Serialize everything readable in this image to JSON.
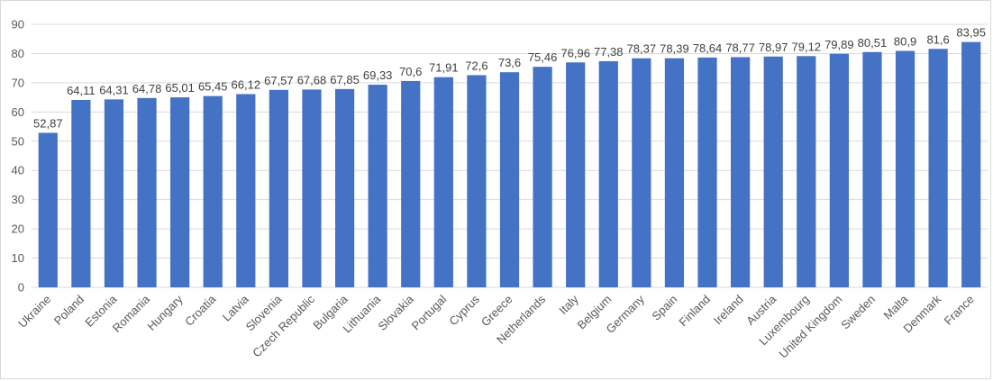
{
  "chart_data": {
    "type": "bar",
    "title": "",
    "xlabel": "",
    "ylabel": "",
    "ylim": [
      0,
      90
    ],
    "yticks": [
      0,
      10,
      20,
      30,
      40,
      50,
      60,
      70,
      80,
      90
    ],
    "grid": true,
    "bar_color": "#4472C4",
    "categories": [
      "Ukraine",
      "Poland",
      "Estonia",
      "Romania",
      "Hungary",
      "Croatia",
      "Latvia",
      "Slovenia",
      "Czech Republic",
      "Bulgaria",
      "Lithuania",
      "Slovakia",
      "Portugal",
      "Cyprus",
      "Greece",
      "Netherlands",
      "Italy",
      "Belgium",
      "Germany",
      "Spain",
      "Finland",
      "Ireland",
      "Austria",
      "Luxembourg",
      "United Kingdom",
      "Sweden",
      "Malta",
      "Denmark",
      "France"
    ],
    "values": [
      52.87,
      64.11,
      64.31,
      64.78,
      65.01,
      65.45,
      66.12,
      67.57,
      67.68,
      67.85,
      69.33,
      70.6,
      71.91,
      72.6,
      73.6,
      75.46,
      76.96,
      77.38,
      78.37,
      78.39,
      78.64,
      78.77,
      78.97,
      79.12,
      79.89,
      80.51,
      80.9,
      81.6,
      83.95
    ],
    "value_labels": [
      "52,87",
      "64,11",
      "64,31",
      "64,78",
      "65,01",
      "65,45",
      "66,12",
      "67,57",
      "67,68",
      "67,85",
      "69,33",
      "70,6",
      "71,91",
      "72,6",
      "73,6",
      "75,46",
      "76,96",
      "77,38",
      "78,37",
      "78,39",
      "78,64",
      "78,77",
      "78,97",
      "79,12",
      "79,89",
      "80,51",
      "80,9",
      "81,6",
      "83,95"
    ]
  }
}
